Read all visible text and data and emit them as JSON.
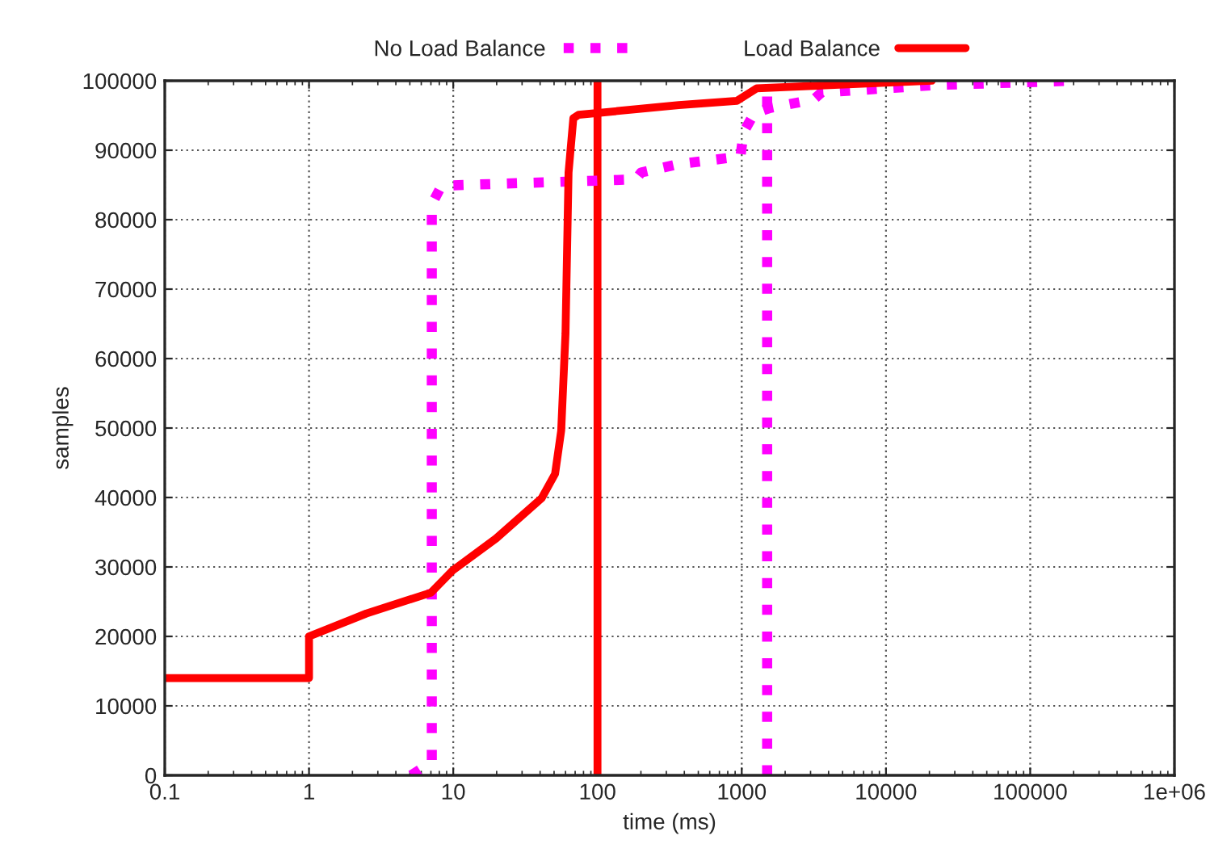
{
  "chart_data": {
    "type": "line",
    "xlabel": "time (ms)",
    "ylabel": "samples",
    "log": "x",
    "grid": true,
    "legend": "top",
    "marker": "none",
    "xlim": [
      0.1,
      1000000
    ],
    "xticks": [
      0.1,
      1,
      10,
      100,
      1000,
      10000,
      100000,
      {
        "value": 1000000,
        "label": "1e+06"
      }
    ],
    "ylim": [
      0,
      100000
    ],
    "yticks": [
      0,
      10000,
      20000,
      30000,
      40000,
      50000,
      60000,
      70000,
      80000,
      90000,
      100000
    ],
    "series": [
      {
        "name": "No Load Balance",
        "color": "#ff00ff",
        "line_style": "dotted",
        "x": [
          5.1,
          7.1,
          7.1,
          8.3,
          184,
          201,
          366,
          980,
          1030,
          1220,
          1580,
          3150,
          3570,
          22800,
          200000
        ],
        "values": [
          0,
          1900,
          82200,
          84900,
          85800,
          86800,
          88000,
          89100,
          92600,
          95300,
          96100,
          97300,
          98300,
          99400,
          100000
        ]
      },
      {
        "name": "Load Balance",
        "color": "#ff0000",
        "line_style": "solid",
        "x": [
          0.1,
          1,
          1,
          2.5,
          7.0,
          9.9,
          19.8,
          41,
          50.8,
          56,
          60,
          63,
          68,
          74,
          366,
          925,
          1270,
          20800
        ],
        "values": [
          14000,
          14000,
          20000,
          23300,
          26300,
          29500,
          34100,
          39900,
          43400,
          49600,
          63600,
          86800,
          94600,
          95100,
          96500,
          97100,
          98900,
          100000
        ]
      }
    ],
    "ref_lines": [
      {
        "axis": "x",
        "value": 1500,
        "color": "#ff00ff",
        "line_style": "dotted"
      },
      {
        "axis": "x",
        "value": 100,
        "color": "#ff0000",
        "line_style": "solid"
      }
    ]
  }
}
